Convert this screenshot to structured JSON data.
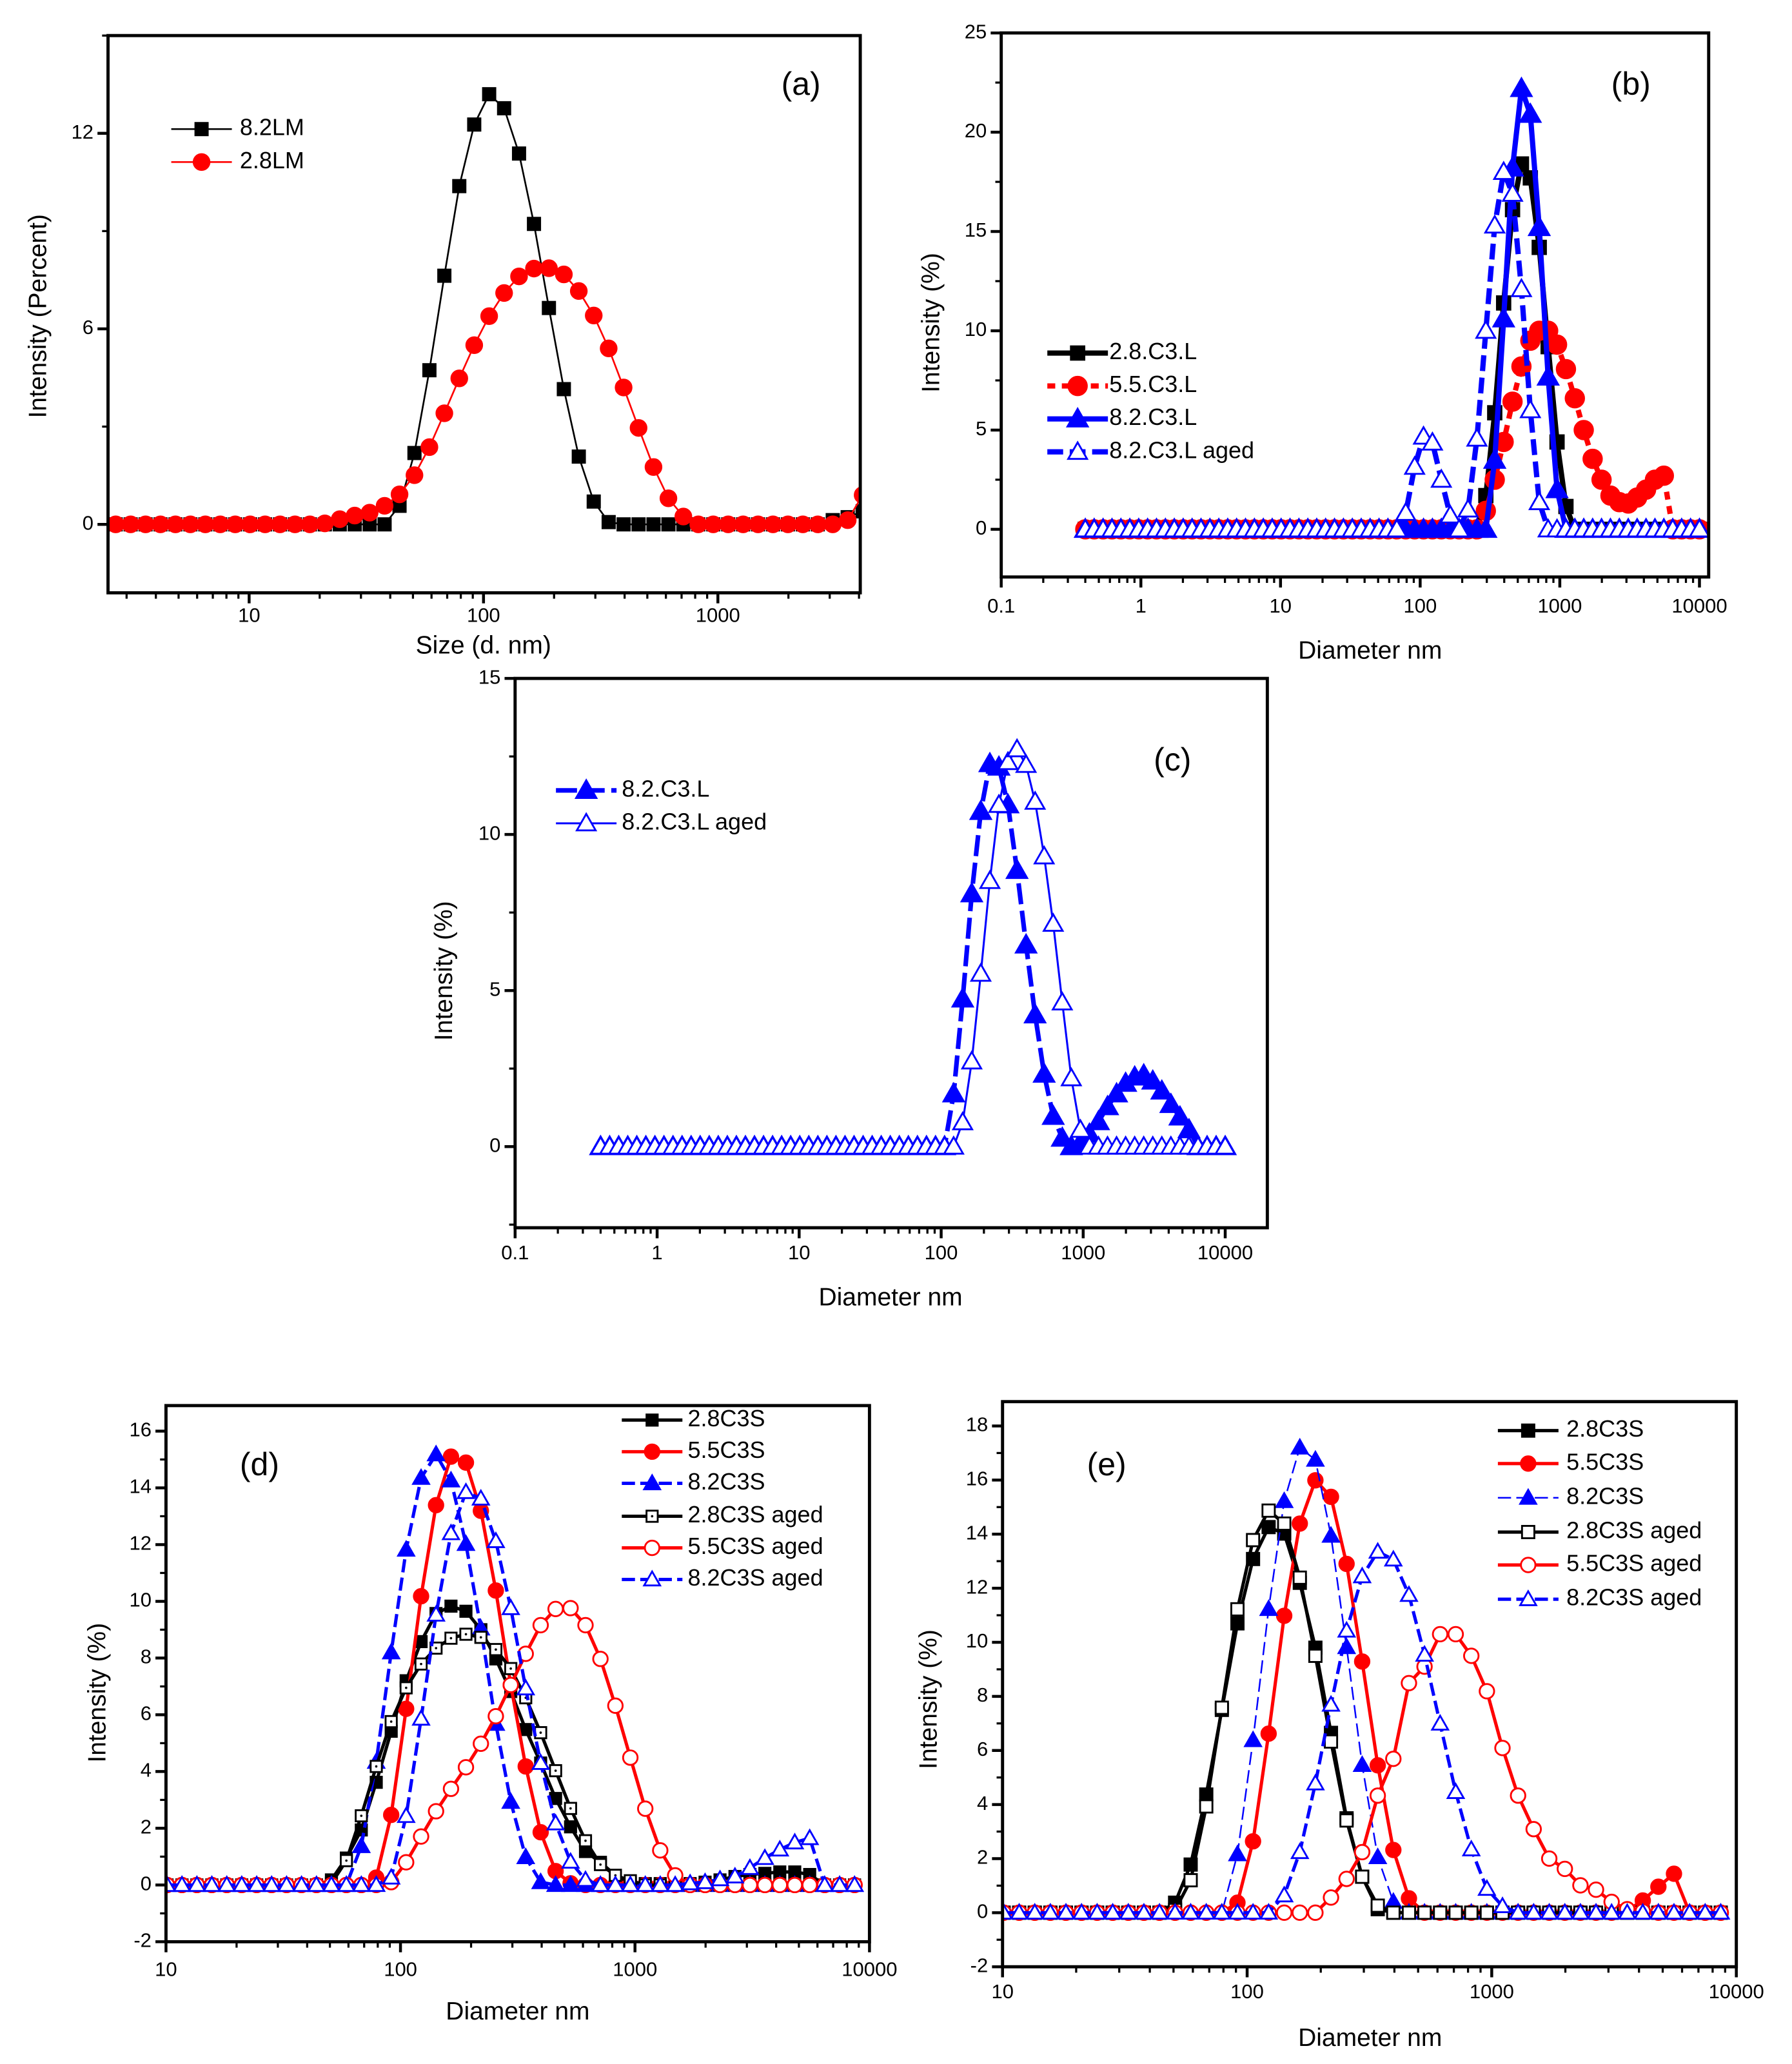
{
  "x_grid": {
    "start_nm": 0.4,
    "end_nm": 10000,
    "n": 70,
    "spacing": "log"
  },
  "chart_data": [
    {
      "panel_label": "(a)",
      "type": "line",
      "xscale": "log",
      "xlabel": "Size (d. nm)",
      "ylabel": "Intensity (Percent)",
      "xlim": [
        2.5,
        4050
      ],
      "ylim": [
        -2.1,
        15
      ],
      "xticks": [
        "10",
        "100",
        "1000"
      ],
      "yticks": [
        "0",
        "6",
        "12"
      ],
      "legend_position": "top-left",
      "series": [
        {
          "name": "8.2LM",
          "color": "#000000",
          "marker": "square",
          "filled": true,
          "from": 13,
          "to": 63,
          "y": {
            "32": 0.57,
            "33": 2.19,
            "34": 4.73,
            "35": 7.63,
            "36": 10.38,
            "37": 12.27,
            "38": 13.2,
            "39": 12.77,
            "40": 11.38,
            "41": 9.22,
            "42": 6.64,
            "43": 4.15,
            "44": 2.08,
            "45": 0.7,
            "46": 0.07,
            "61": 0.13,
            "62": 0.22,
            "63": 0.4
          }
        },
        {
          "name": "2.8LM",
          "color": "#ff0000",
          "marker": "circle",
          "filled": true,
          "from": 13,
          "to": 63,
          "y": {
            "27": 0.03,
            "28": 0.16,
            "29": 0.27,
            "30": 0.36,
            "31": 0.57,
            "32": 0.92,
            "33": 1.51,
            "34": 2.37,
            "35": 3.41,
            "36": 4.48,
            "37": 5.5,
            "38": 6.39,
            "39": 7.1,
            "40": 7.61,
            "41": 7.85,
            "42": 7.86,
            "43": 7.67,
            "44": 7.16,
            "45": 6.41,
            "46": 5.4,
            "47": 4.2,
            "48": 2.96,
            "49": 1.76,
            "50": 0.8,
            "51": 0.24,
            "62": 0.13,
            "63": 0.9
          }
        }
      ]
    },
    {
      "panel_label": "(b)",
      "type": "line",
      "xscale": "log",
      "xlabel": "Diameter nm",
      "ylabel": "Intensity (%)",
      "xlim": [
        0.1,
        11640
      ],
      "ylim": [
        -2.4,
        25
      ],
      "xticks": [
        "0.1",
        "1",
        "10",
        "100",
        "1000",
        "10000"
      ],
      "yticks": [
        "0",
        "5",
        "10",
        "15",
        "20",
        "25"
      ],
      "legend_position": "middle-left",
      "series": [
        {
          "name": "2.8.C3.L",
          "color": "#000000",
          "marker": "square",
          "filled": true,
          "from": 0,
          "to": 69,
          "y": {
            "45": 1.7,
            "46": 5.87,
            "47": 11.4,
            "48": 16.1,
            "49": 18.4,
            "50": 17.7,
            "51": 14.2,
            "52": 9.2,
            "53": 4.4,
            "54": 1.15
          }
        },
        {
          "name": "5.5.C3.L",
          "color": "#ff0000",
          "marker": "circle",
          "filled": true,
          "from": 0,
          "to": 69,
          "y": {
            "45": 0.93,
            "46": 2.5,
            "47": 4.4,
            "48": 6.43,
            "49": 8.2,
            "50": 9.5,
            "51": 10.0,
            "52": 10.0,
            "53": 9.3,
            "54": 8.07,
            "55": 6.6,
            "56": 5.0,
            "57": 3.55,
            "58": 2.5,
            "59": 1.7,
            "60": 1.37,
            "61": 1.3,
            "62": 1.6,
            "63": 2.0,
            "64": 2.5,
            "65": 2.7
          }
        },
        {
          "name": "8.2.C3.L",
          "color": "#0000ff",
          "marker": "triangle",
          "filled": true,
          "from": 0,
          "to": 69,
          "y": {
            "46": 3.48,
            "47": 10.6,
            "48": 18.2,
            "49": 22.2,
            "50": 20.9,
            "51": 15.2,
            "52": 7.67,
            "53": 2.0
          }
        },
        {
          "name": "8.2.C3.L aged",
          "color": "#0000ff",
          "marker": "triangle",
          "filled": false,
          "from": 0,
          "to": 69,
          "y": {
            "36": 0.83,
            "37": 3.15,
            "38": 4.67,
            "39": 4.37,
            "40": 2.5,
            "41": 0.7,
            "43": 1.0,
            "44": 4.57,
            "45": 10.0,
            "46": 15.3,
            "47": 18.0,
            "48": 16.9,
            "49": 12.1,
            "50": 6.0,
            "51": 1.37
          }
        }
      ]
    },
    {
      "panel_label": "(c)",
      "type": "line",
      "xscale": "log",
      "xlabel": "Diameter nm",
      "ylabel": "Intensity (%)",
      "xlim": [
        0.1,
        19800
      ],
      "ylim": [
        -2.6,
        15
      ],
      "xticks": [
        "0.1",
        "1",
        "10",
        "100",
        "1000",
        "10000"
      ],
      "yticks": [
        "0",
        "5",
        "10",
        "15"
      ],
      "legend_position": "top-left",
      "series": [
        {
          "name": "8.2.C3.L",
          "color": "#0000ff",
          "marker": "triangle",
          "filled": true,
          "from": 0,
          "to": 69,
          "y": {
            "39": 1.69,
            "40": 4.73,
            "41": 8.1,
            "42": 10.74,
            "43": 12.27,
            "44": 12.16,
            "45": 10.95,
            "46": 8.85,
            "47": 6.46,
            "48": 4.22,
            "49": 2.32,
            "50": 0.97,
            "51": 0.27,
            "53": 0.13,
            "54": 0.4,
            "55": 0.8,
            "56": 1.28,
            "57": 1.69,
            "58": 2.03,
            "59": 2.23,
            "60": 2.3,
            "61": 2.1,
            "62": 1.78,
            "63": 1.35,
            "64": 0.95,
            "65": 0.54
          }
        },
        {
          "name": "8.2.C3.L aged",
          "color": "#0000ff",
          "marker": "triangle",
          "filled": false,
          "from": 0,
          "to": 69,
          "y": {
            "40": 0.78,
            "41": 2.73,
            "42": 5.54,
            "43": 8.51,
            "44": 10.95,
            "45": 12.32,
            "46": 12.73,
            "47": 12.23,
            "48": 11.05,
            "49": 9.3,
            "50": 7.14,
            "51": 4.62,
            "52": 2.19,
            "53": 0.54
          }
        }
      ]
    },
    {
      "panel_label": "(d)",
      "type": "line",
      "xscale": "log",
      "xlabel": "Diameter nm",
      "ylabel": "Intensity (%)",
      "xlim": [
        10,
        10000
      ],
      "ylim": [
        -2,
        16.9
      ],
      "xticks": [
        "10",
        "100",
        "1000",
        "10000"
      ],
      "yticks": [
        "-2",
        "0",
        "2",
        "4",
        "6",
        "8",
        "10",
        "12",
        "14",
        "16"
      ],
      "legend_position": "top-right",
      "series": [
        {
          "name": "2.8C3S",
          "color": "#000000",
          "marker": "square",
          "filled": true,
          "from": 22,
          "to": 68,
          "y": {
            "33": 0.18,
            "34": 0.95,
            "35": 1.94,
            "36": 3.62,
            "37": 5.42,
            "38": 7.2,
            "39": 8.58,
            "40": 9.57,
            "41": 9.83,
            "42": 9.65,
            "43": 9.0,
            "44": 7.97,
            "45": 6.82,
            "46": 5.48,
            "47": 4.3,
            "48": 3.05,
            "49": 2.05,
            "50": 1.18,
            "51": 0.8,
            "52": 0.34,
            "53": 0.05,
            "54": 0.05,
            "55": 0.05,
            "56": 0.05,
            "57": 0.05,
            "58": 0.1,
            "59": 0.18,
            "60": 0.3,
            "61": 0.37,
            "62": 0.41,
            "63": 0.46,
            "64": 0.46,
            "65": 0.37
          }
        },
        {
          "name": "5.5C3S",
          "color": "#ff0000",
          "marker": "circle",
          "filled": true,
          "from": 22,
          "to": 68,
          "y": {
            "36": 0.26,
            "37": 2.47,
            "38": 6.21,
            "39": 10.18,
            "40": 13.39,
            "41": 15.1,
            "42": 14.89,
            "43": 13.19,
            "44": 10.38,
            "45": 7.05,
            "46": 4.18,
            "47": 1.86,
            "48": 0.49,
            "49": 0.06
          }
        },
        {
          "name": "8.2C3S",
          "color": "#0000ff",
          "marker": "triangle",
          "filled": true,
          "from": 22,
          "to": 68,
          "y": {
            "35": 1.37,
            "36": 4.34,
            "37": 8.2,
            "38": 11.82,
            "39": 14.35,
            "40": 15.18,
            "41": 14.26,
            "42": 12.02,
            "43": 9.04,
            "44": 5.68,
            "45": 2.93,
            "46": 0.98,
            "47": 0.1
          }
        },
        {
          "name": "2.8C3S aged",
          "color": "#000000",
          "marker": "square-dot",
          "filled": false,
          "from": 22,
          "to": 68,
          "y": {
            "33": 0.06,
            "34": 0.86,
            "35": 2.44,
            "36": 4.18,
            "37": 5.76,
            "38": 6.95,
            "39": 7.79,
            "40": 8.35,
            "41": 8.7,
            "42": 8.84,
            "43": 8.73,
            "44": 8.3,
            "45": 7.63,
            "46": 6.6,
            "47": 5.37,
            "48": 4.03,
            "49": 2.7,
            "50": 1.56,
            "51": 0.72,
            "52": 0.34,
            "53": 0.15
          }
        },
        {
          "name": "5.5C3S aged",
          "color": "#ff0000",
          "marker": "circle",
          "filled": false,
          "from": 22,
          "to": 68,
          "y": {
            "37": 0.1,
            "38": 0.8,
            "39": 1.71,
            "40": 2.6,
            "41": 3.39,
            "42": 4.15,
            "43": 4.98,
            "44": 5.95,
            "45": 7.05,
            "46": 8.15,
            "47": 9.16,
            "48": 9.73,
            "49": 9.76,
            "50": 9.16,
            "51": 7.97,
            "52": 6.32,
            "53": 4.49,
            "54": 2.69,
            "55": 1.22,
            "56": 0.34
          }
        },
        {
          "name": "8.2C3S aged",
          "color": "#0000ff",
          "marker": "triangle",
          "filled": false,
          "from": 22,
          "to": 68,
          "y": {
            "37": 0.26,
            "38": 2.43,
            "39": 5.86,
            "40": 9.53,
            "41": 12.4,
            "42": 13.85,
            "43": 13.62,
            "44": 12.12,
            "45": 9.76,
            "46": 6.93,
            "47": 4.3,
            "48": 2.17,
            "49": 0.82,
            "50": 0.18,
            "57": 0.06,
            "58": 0.1,
            "59": 0.2,
            "60": 0.3,
            "61": 0.6,
            "62": 0.95,
            "63": 1.25,
            "64": 1.5,
            "65": 1.65
          }
        }
      ]
    },
    {
      "panel_label": "(e)",
      "type": "line",
      "xscale": "log",
      "xlabel": "Diameter nm",
      "ylabel": "Intensity (%)",
      "xlim": [
        10,
        10000
      ],
      "ylim": [
        -2,
        18.9
      ],
      "xticks": [
        "10",
        "100",
        "1000",
        "10000"
      ],
      "yticks": [
        "-2",
        "0",
        "2",
        "4",
        "6",
        "8",
        "10",
        "12",
        "14",
        "16",
        "18"
      ],
      "legend_position": "top-right",
      "series": [
        {
          "name": "2.8C3S",
          "color": "#000000",
          "marker": "square",
          "filled": true,
          "from": 22,
          "to": 68,
          "y": {
            "33": 0.37,
            "34": 1.78,
            "35": 4.37,
            "36": 7.5,
            "37": 10.7,
            "38": 13.08,
            "39": 14.26,
            "40": 14.02,
            "41": 12.2,
            "42": 9.8,
            "43": 6.65,
            "44": 3.49,
            "45": 1.33,
            "46": 0.13
          }
        },
        {
          "name": "5.5C3S",
          "color": "#ff0000",
          "marker": "circle",
          "filled": true,
          "from": 22,
          "to": 68,
          "y": {
            "37": 0.37,
            "38": 2.64,
            "39": 6.62,
            "40": 10.98,
            "41": 14.39,
            "42": 15.99,
            "43": 15.38,
            "44": 12.9,
            "45": 9.29,
            "46": 5.45,
            "47": 2.32,
            "48": 0.53,
            "62": 0.08,
            "63": 0.45,
            "64": 0.96,
            "65": 1.44
          }
        },
        {
          "name": "8.2C3S",
          "color": "#0000ff",
          "marker": "triangle",
          "filled": true,
          "from": 22,
          "to": 68,
          "y": {
            "37": 2.16,
            "38": 6.38,
            "39": 11.23,
            "40": 15.22,
            "41": 17.2,
            "42": 16.75,
            "43": 13.94,
            "44": 9.82,
            "45": 5.46,
            "46": 2.05,
            "47": 0.4
          }
        },
        {
          "name": "2.8C3S aged",
          "color": "#000000",
          "marker": "square",
          "filled": false,
          "from": 22,
          "to": 68,
          "y": {
            "33": 0.1,
            "34": 1.2,
            "35": 3.93,
            "36": 7.58,
            "37": 11.22,
            "38": 13.78,
            "39": 14.87,
            "40": 14.39,
            "41": 12.39,
            "42": 9.5,
            "43": 6.33,
            "44": 3.41,
            "45": 1.33,
            "46": 0.26
          }
        },
        {
          "name": "5.5C3S aged",
          "color": "#ff0000",
          "marker": "circle",
          "filled": false,
          "from": 22,
          "to": 68,
          "y": {
            "43": 0.56,
            "44": 1.25,
            "45": 2.24,
            "46": 4.33,
            "47": 5.69,
            "48": 8.49,
            "49": 9.1,
            "50": 10.3,
            "51": 10.3,
            "52": 9.5,
            "53": 8.19,
            "54": 6.09,
            "55": 4.33,
            "56": 3.09,
            "57": 2.0,
            "58": 1.62,
            "59": 1.01,
            "60": 0.85,
            "61": 0.4,
            "62": 0.13,
            "63": 0.05
          }
        },
        {
          "name": "8.2C3S aged",
          "color": "#0000ff",
          "marker": "triangle",
          "filled": false,
          "from": 22,
          "to": 68,
          "y": {
            "40": 0.64,
            "41": 2.24,
            "42": 4.78,
            "43": 7.69,
            "44": 10.43,
            "45": 12.44,
            "46": 13.35,
            "47": 13.06,
            "48": 11.75,
            "49": 9.54,
            "50": 6.99,
            "51": 4.46,
            "52": 2.34,
            "53": 0.88,
            "54": 0.24
          }
        }
      ]
    }
  ]
}
